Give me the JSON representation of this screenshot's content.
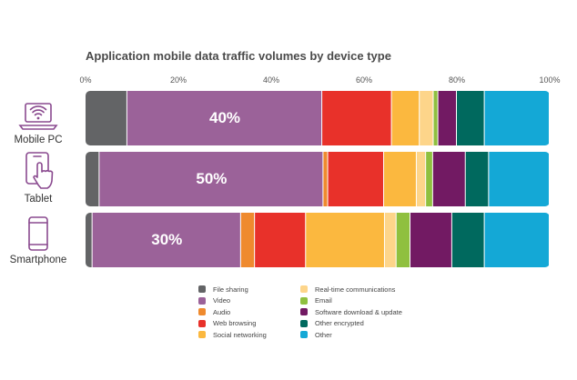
{
  "chart_data": {
    "type": "bar",
    "orientation": "horizontal",
    "stacked": true,
    "title": "Application mobile data traffic volumes by device type",
    "xlabel": "",
    "ylabel": "",
    "xlim": [
      0,
      100
    ],
    "x_ticks": [
      "0%",
      "20%",
      "40%",
      "60%",
      "80%",
      "100%"
    ],
    "grid": false,
    "legend_position": "bottom",
    "categories": [
      "Mobile PC",
      "Tablet",
      "Smartphone"
    ],
    "category_icons": [
      "laptop-wifi-icon",
      "tablet-touch-icon",
      "smartphone-icon"
    ],
    "bar_labels": [
      "40%",
      "50%",
      "30%"
    ],
    "series": [
      {
        "name": "File sharing",
        "color": "#636466",
        "values": [
          9,
          3,
          1.5
        ]
      },
      {
        "name": "Video",
        "color": "#9b6299",
        "values": [
          42,
          48,
          32
        ]
      },
      {
        "name": "Audio",
        "color": "#ef8a2e",
        "values": [
          0,
          1,
          3
        ]
      },
      {
        "name": "Web browsing",
        "color": "#e8312a",
        "values": [
          15,
          12,
          11
        ]
      },
      {
        "name": "Social networking",
        "color": "#fbb83f",
        "values": [
          6,
          7,
          17
        ]
      },
      {
        "name": "Real-time communications",
        "color": "#fdd58a",
        "values": [
          3,
          2,
          2.5
        ]
      },
      {
        "name": "Email",
        "color": "#8fc03f",
        "values": [
          1,
          1.5,
          3
        ]
      },
      {
        "name": "Software download & update",
        "color": "#721a63",
        "values": [
          4,
          7,
          9
        ]
      },
      {
        "name": "Other encrypted",
        "color": "#00695e",
        "values": [
          6,
          5,
          7
        ]
      },
      {
        "name": "Other",
        "color": "#14a8d6",
        "values": [
          14,
          13,
          14
        ]
      }
    ]
  }
}
